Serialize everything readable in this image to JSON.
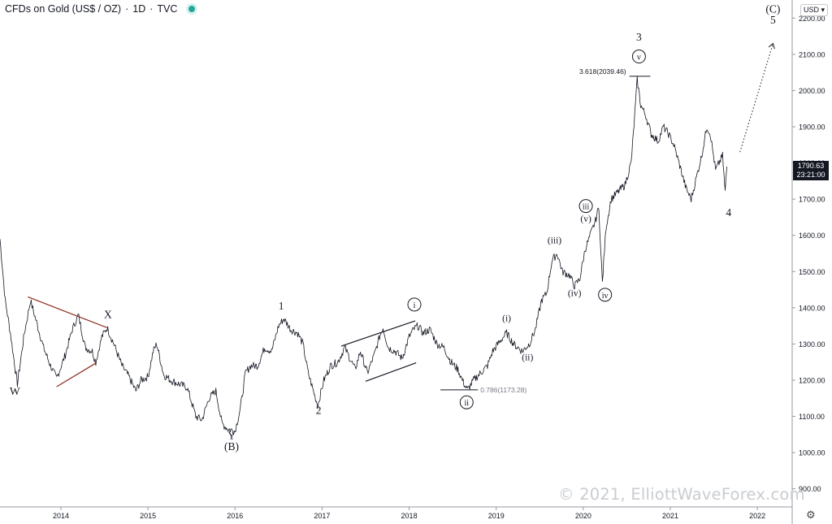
{
  "header": {
    "title": "CFDs on Gold (US$ / OZ)",
    "interval": "1D",
    "source": "TVC",
    "status_color": "#26a69a"
  },
  "currency": "USD",
  "price_label": {
    "price": "1790.63",
    "countdown": "23:21:00"
  },
  "watermark": "© 2021, ElliottWaveForex.com",
  "settings_icon": "gear-icon",
  "chart_data": {
    "type": "line",
    "title": "CFDs on Gold (US$ / OZ) · 1D · TVC",
    "xlabel": "",
    "ylabel": "",
    "xlim": [
      2013.3,
      2022.4
    ],
    "ylim": [
      850,
      2250
    ],
    "x_ticks": [
      "2014",
      "2015",
      "2016",
      "2017",
      "2018",
      "2019",
      "2020",
      "2021",
      "2022"
    ],
    "x_tick_values": [
      2014,
      2015,
      2016,
      2017,
      2018,
      2019,
      2020,
      2021,
      2022
    ],
    "y_ticks": [
      "900.00",
      "1000.00",
      "1100.00",
      "1200.00",
      "1300.00",
      "1400.00",
      "1500.00",
      "1600.00",
      "1700.00",
      "1800.00",
      "1900.00",
      "2000.00",
      "2100.00",
      "2200.00"
    ],
    "y_tick_values": [
      900,
      1000,
      1100,
      1200,
      1300,
      1400,
      1500,
      1600,
      1700,
      1800,
      1900,
      2000,
      2100,
      2200
    ],
    "grid": false,
    "series": [
      {
        "values": [
          [
            2013.3,
            1590
          ],
          [
            2013.36,
            1420
          ],
          [
            2013.42,
            1330
          ],
          [
            2013.47,
            1240
          ],
          [
            2013.5,
            1190
          ],
          [
            2013.58,
            1330
          ],
          [
            2013.65,
            1420
          ],
          [
            2013.72,
            1360
          ],
          [
            2013.8,
            1290
          ],
          [
            2013.88,
            1240
          ],
          [
            2013.95,
            1205
          ],
          [
            2014.05,
            1270
          ],
          [
            2014.13,
            1340
          ],
          [
            2014.2,
            1380
          ],
          [
            2014.28,
            1290
          ],
          [
            2014.36,
            1280
          ],
          [
            2014.4,
            1250
          ],
          [
            2014.47,
            1320
          ],
          [
            2014.53,
            1345
          ],
          [
            2014.6,
            1305
          ],
          [
            2014.7,
            1240
          ],
          [
            2014.78,
            1210
          ],
          [
            2014.86,
            1170
          ],
          [
            2014.92,
            1200
          ],
          [
            2015.0,
            1210
          ],
          [
            2015.06,
            1280
          ],
          [
            2015.1,
            1300
          ],
          [
            2015.18,
            1215
          ],
          [
            2015.26,
            1200
          ],
          [
            2015.35,
            1190
          ],
          [
            2015.45,
            1180
          ],
          [
            2015.55,
            1100
          ],
          [
            2015.62,
            1090
          ],
          [
            2015.7,
            1150
          ],
          [
            2015.78,
            1170
          ],
          [
            2015.85,
            1080
          ],
          [
            2015.92,
            1065
          ],
          [
            2016.0,
            1060
          ],
          [
            2016.06,
            1120
          ],
          [
            2016.12,
            1220
          ],
          [
            2016.18,
            1240
          ],
          [
            2016.26,
            1240
          ],
          [
            2016.34,
            1290
          ],
          [
            2016.42,
            1280
          ],
          [
            2016.5,
            1350
          ],
          [
            2016.56,
            1370
          ],
          [
            2016.64,
            1340
          ],
          [
            2016.72,
            1330
          ],
          [
            2016.78,
            1300
          ],
          [
            2016.84,
            1220
          ],
          [
            2016.9,
            1170
          ],
          [
            2016.95,
            1130
          ],
          [
            2017.02,
            1200
          ],
          [
            2017.1,
            1240
          ],
          [
            2017.18,
            1250
          ],
          [
            2017.26,
            1290
          ],
          [
            2017.32,
            1260
          ],
          [
            2017.38,
            1230
          ],
          [
            2017.44,
            1280
          ],
          [
            2017.52,
            1220
          ],
          [
            2017.6,
            1270
          ],
          [
            2017.66,
            1320
          ],
          [
            2017.7,
            1345
          ],
          [
            2017.76,
            1290
          ],
          [
            2017.84,
            1280
          ],
          [
            2017.92,
            1260
          ],
          [
            2018.0,
            1320
          ],
          [
            2018.05,
            1340
          ],
          [
            2018.1,
            1350
          ],
          [
            2018.16,
            1330
          ],
          [
            2018.24,
            1340
          ],
          [
            2018.32,
            1300
          ],
          [
            2018.4,
            1290
          ],
          [
            2018.48,
            1250
          ],
          [
            2018.56,
            1230
          ],
          [
            2018.62,
            1195
          ],
          [
            2018.67,
            1173
          ],
          [
            2018.74,
            1200
          ],
          [
            2018.82,
            1220
          ],
          [
            2018.9,
            1240
          ],
          [
            2018.96,
            1280
          ],
          [
            2019.05,
            1310
          ],
          [
            2019.12,
            1330
          ],
          [
            2019.2,
            1300
          ],
          [
            2019.3,
            1280
          ],
          [
            2019.38,
            1300
          ],
          [
            2019.45,
            1340
          ],
          [
            2019.52,
            1420
          ],
          [
            2019.58,
            1440
          ],
          [
            2019.64,
            1530
          ],
          [
            2019.7,
            1550
          ],
          [
            2019.76,
            1500
          ],
          [
            2019.84,
            1490
          ],
          [
            2019.9,
            1460
          ],
          [
            2019.96,
            1480
          ],
          [
            2020.02,
            1560
          ],
          [
            2020.08,
            1600
          ],
          [
            2020.14,
            1640
          ],
          [
            2020.18,
            1680
          ],
          [
            2020.2,
            1560
          ],
          [
            2020.22,
            1470
          ],
          [
            2020.26,
            1620
          ],
          [
            2020.32,
            1700
          ],
          [
            2020.4,
            1720
          ],
          [
            2020.48,
            1740
          ],
          [
            2020.55,
            1800
          ],
          [
            2020.6,
            1960
          ],
          [
            2020.62,
            2030
          ],
          [
            2020.66,
            1960
          ],
          [
            2020.72,
            1930
          ],
          [
            2020.78,
            1880
          ],
          [
            2020.86,
            1860
          ],
          [
            2020.92,
            1900
          ],
          [
            2020.98,
            1880
          ],
          [
            2021.04,
            1850
          ],
          [
            2021.1,
            1800
          ],
          [
            2021.18,
            1730
          ],
          [
            2021.24,
            1700
          ],
          [
            2021.3,
            1760
          ],
          [
            2021.36,
            1820
          ],
          [
            2021.42,
            1900
          ],
          [
            2021.46,
            1880
          ],
          [
            2021.52,
            1780
          ],
          [
            2021.56,
            1800
          ],
          [
            2021.6,
            1820
          ],
          [
            2021.63,
            1720
          ],
          [
            2021.65,
            1790
          ]
        ]
      }
    ],
    "projection": {
      "from": [
        2021.8,
        1830
      ],
      "to": [
        2022.18,
        2130
      ],
      "style": "dotted"
    },
    "trendlines": [
      {
        "from": [
          2013.62,
          1430
        ],
        "to": [
          2014.53,
          1345
        ],
        "color": "#8b2a1a"
      },
      {
        "from": [
          2013.95,
          1182
        ],
        "to": [
          2014.4,
          1247
        ],
        "color": "#8b2a1a"
      },
      {
        "from": [
          2017.22,
          1294
        ],
        "to": [
          2018.07,
          1364
        ],
        "color": "#131722"
      },
      {
        "from": [
          2017.5,
          1197
        ],
        "to": [
          2018.08,
          1248
        ],
        "color": "#131722"
      }
    ],
    "levels": [
      {
        "label": "3.618(2039.46)",
        "value": 2039.46,
        "x0": 2020.53,
        "x1": 2020.77,
        "text_color": "#131722"
      },
      {
        "label": "0.786(1173.28)",
        "value": 1173.28,
        "x0": 2018.36,
        "x1": 2018.79,
        "text_color": "#787b86"
      }
    ],
    "annotations": [
      {
        "text": "W",
        "x": 2013.47,
        "y": 1160,
        "circled": false
      },
      {
        "text": "X",
        "x": 2014.54,
        "y": 1372,
        "circled": false
      },
      {
        "text": "Y",
        "x": 2015.96,
        "y": 1037,
        "circled": false
      },
      {
        "text": "(B)",
        "x": 2015.96,
        "y": 1007,
        "circled": false
      },
      {
        "text": "1",
        "x": 2016.53,
        "y": 1395,
        "circled": false
      },
      {
        "text": "2",
        "x": 2016.96,
        "y": 1107,
        "circled": false
      },
      {
        "text": "i",
        "x": 2018.06,
        "y": 1400,
        "circled": true
      },
      {
        "text": "ii",
        "x": 2018.66,
        "y": 1130,
        "circled": true
      },
      {
        "text": "(i)",
        "x": 2019.12,
        "y": 1363,
        "circled": false
      },
      {
        "text": "(ii)",
        "x": 2019.36,
        "y": 1255,
        "circled": false
      },
      {
        "text": "(iii)",
        "x": 2019.67,
        "y": 1578,
        "circled": false
      },
      {
        "text": "(iv)",
        "x": 2019.9,
        "y": 1432,
        "circled": false
      },
      {
        "text": "(v)",
        "x": 2020.03,
        "y": 1638,
        "circled": false
      },
      {
        "text": "iii",
        "x": 2020.03,
        "y": 1672,
        "circled": true
      },
      {
        "text": "iv",
        "x": 2020.25,
        "y": 1427,
        "circled": true
      },
      {
        "text": "3",
        "x": 2020.64,
        "y": 2138,
        "circled": false
      },
      {
        "text": "v",
        "x": 2020.64,
        "y": 2085,
        "circled": true
      },
      {
        "text": "4",
        "x": 2021.67,
        "y": 1653,
        "circled": false
      },
      {
        "text": "(C)",
        "x": 2022.18,
        "y": 2215,
        "circled": false
      },
      {
        "text": "5",
        "x": 2022.18,
        "y": 2185,
        "circled": false
      }
    ]
  }
}
